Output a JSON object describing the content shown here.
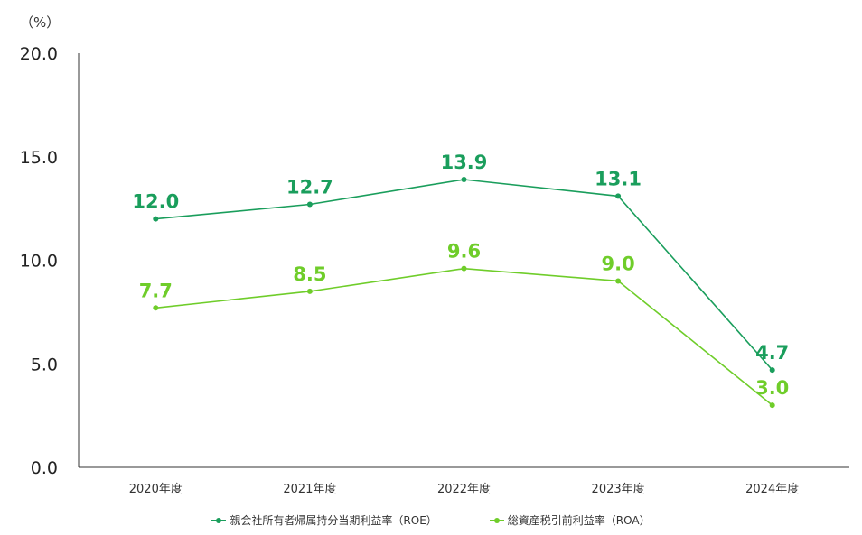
{
  "chart_data": {
    "type": "line",
    "unit_label": "（%）",
    "categories": [
      "2020年度",
      "2021年度",
      "2022年度",
      "2023年度",
      "2024年度"
    ],
    "series": [
      {
        "name": "親会社所有者帰属持分当期利益率（ROE）",
        "values": [
          12.0,
          12.7,
          13.9,
          13.1,
          4.7
        ],
        "color": "#1a9e5c"
      },
      {
        "name": "総資産税引前利益率（ROA）",
        "values": [
          7.7,
          8.5,
          9.6,
          9.0,
          3.0
        ],
        "color": "#6fcd2a"
      }
    ],
    "y_ticks": [
      "0.0",
      "5.0",
      "10.0",
      "15.0",
      "20.0"
    ],
    "ylim": [
      0,
      20
    ],
    "grid": false,
    "legend_position": "bottom"
  }
}
